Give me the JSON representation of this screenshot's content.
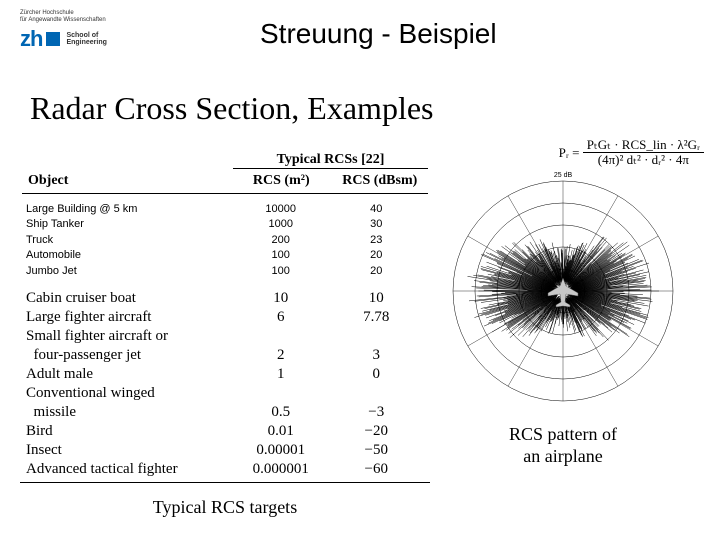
{
  "logo": {
    "tagline_l1": "Zürcher Hochschule",
    "tagline_l2": "für Angewandte Wissenschaften",
    "mark": "zh",
    "school_l1": "School of",
    "school_l2": "Engineering"
  },
  "page_title": "Streuung - Beispiel",
  "figure_title": "Radar Cross Section, Examples",
  "formula": {
    "lhs": "Pᵣ =",
    "num": "PₜGₜ · RCS_lin · λ²Gᵣ",
    "den": "(4π)² dₜ² · dᵣ² · 4π"
  },
  "table": {
    "super_head": "Typical RCSs [22]",
    "head_obj": "Object",
    "head_m2": "RCS (m²)",
    "head_db": "RCS (dBsm)",
    "overlay_rows": [
      {
        "obj": "Large Building @ 5 km",
        "m2": "10000",
        "db": "40"
      },
      {
        "obj": "Ship Tanker",
        "m2": "1000",
        "db": "30"
      },
      {
        "obj": "Truck",
        "m2": "200",
        "db": "23"
      },
      {
        "obj": "Automobile",
        "m2": "100",
        "db": "20"
      },
      {
        "obj": "Jumbo Jet",
        "m2": "100",
        "db": "20"
      }
    ],
    "rows": [
      {
        "obj": "Cabin cruiser boat",
        "m2": "10",
        "db": "10"
      },
      {
        "obj": "Large fighter aircraft",
        "m2": "6",
        "db": "7.78"
      },
      {
        "obj": "Small fighter aircraft or",
        "m2": "",
        "db": ""
      },
      {
        "obj": "  four-passenger jet",
        "m2": "2",
        "db": "3"
      },
      {
        "obj": "Adult male",
        "m2": "1",
        "db": "0"
      },
      {
        "obj": "Conventional winged",
        "m2": "",
        "db": ""
      },
      {
        "obj": "  missile",
        "m2": "0.5",
        "db": "−3"
      },
      {
        "obj": "Bird",
        "m2": "0.01",
        "db": "−20"
      },
      {
        "obj": "Insect",
        "m2": "0.00001",
        "db": "−50"
      },
      {
        "obj": "Advanced tactical fighter",
        "m2": "0.000001",
        "db": "−60"
      }
    ]
  },
  "left_caption": "Typical RCS targets",
  "polar": {
    "ring_count": 5,
    "spoke_count": 12,
    "tick_dB": "25 dB",
    "caption_l1": "RCS pattern of",
    "caption_l2": "an airplane",
    "colors": {
      "stroke": "#000000",
      "aircraft_fill": "#c8c8c8",
      "bg": "#ffffff"
    }
  }
}
